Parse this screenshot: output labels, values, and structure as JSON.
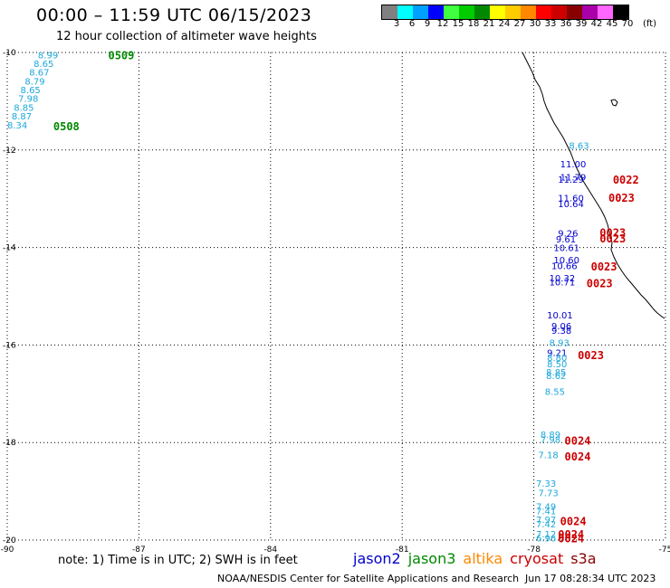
{
  "header": {
    "title": "00:00 – 11:59 UTC 06/15/2023",
    "subtitle": "12 hour collection of altimeter wave heights"
  },
  "colorbar": {
    "unit": "(ft)",
    "labels": [
      "3",
      "6",
      "9",
      "12",
      "15",
      "18",
      "21",
      "24",
      "27",
      "30",
      "33",
      "36",
      "39",
      "42",
      "45",
      "70"
    ],
    "colors": [
      "#808080",
      "#00ffff",
      "#00a0ff",
      "#0000ff",
      "#40ff40",
      "#00cc00",
      "#008800",
      "#ffff00",
      "#ffcc00",
      "#ff8800",
      "#ff0000",
      "#cc0000",
      "#880000",
      "#aa00aa",
      "#ff66ff",
      "#000000"
    ]
  },
  "axes": {
    "lon_ticks": [
      "-90",
      "-87",
      "-84",
      "-81",
      "-78",
      "-75"
    ],
    "lon_values": [
      -90,
      -87,
      -84,
      -81,
      -78,
      -75
    ],
    "lat_ticks": [
      "-10",
      "-12",
      "-14",
      "-16",
      "-18",
      "-20"
    ],
    "lat_values": [
      -10,
      -12,
      -14,
      -16,
      -18,
      -20
    ],
    "lon_range": [
      -90,
      -75
    ],
    "lat_range": [
      -20,
      -10
    ]
  },
  "satellites": [
    {
      "name": "jason2",
      "color": "#0000cc"
    },
    {
      "name": "jason3",
      "color": "#008800"
    },
    {
      "name": "altika",
      "color": "#ff8800"
    },
    {
      "name": "cryosat",
      "color": "#cc0000"
    },
    {
      "name": "s3a",
      "color": "#880000"
    }
  ],
  "footer": {
    "note": "note: 1) Time is in UTC; 2) SWH is in feet",
    "credit": "NOAA/NESDIS Center for Satellite Applications and Research",
    "timestamp": "Jun 17 08:28:34 UTC 2023"
  },
  "observations": [
    {
      "lon": -89.3,
      "lat": -10.05,
      "text": "8.99",
      "color": "#1ca8d8"
    },
    {
      "lon": -89.4,
      "lat": -10.22,
      "text": "8.65",
      "color": "#1ca8d8"
    },
    {
      "lon": -89.5,
      "lat": -10.4,
      "text": "8.67",
      "color": "#1ca8d8"
    },
    {
      "lon": -89.6,
      "lat": -10.58,
      "text": "8.79",
      "color": "#1ca8d8"
    },
    {
      "lon": -89.7,
      "lat": -10.76,
      "text": "8.65",
      "color": "#1ca8d8"
    },
    {
      "lon": -89.75,
      "lat": -10.94,
      "text": "7.98",
      "color": "#1ca8d8"
    },
    {
      "lon": -89.85,
      "lat": -11.12,
      "text": "8.85",
      "color": "#1ca8d8"
    },
    {
      "lon": -89.9,
      "lat": -11.3,
      "text": "8.87",
      "color": "#1ca8d8"
    },
    {
      "lon": -90.0,
      "lat": -11.48,
      "text": "8.34",
      "color": "#1ca8d8"
    },
    {
      "lon": -77.2,
      "lat": -11.9,
      "text": "8.63",
      "color": "#1ca8d8"
    },
    {
      "lon": -77.4,
      "lat": -12.28,
      "text": "11.00",
      "color": "#0000cc"
    },
    {
      "lon": -77.45,
      "lat": -12.6,
      "text": "11.29",
      "color": "#0000cc"
    },
    {
      "lon": -77.4,
      "lat": -12.55,
      "text": "11.79",
      "color": "#0000cc"
    },
    {
      "lon": -77.45,
      "lat": -12.98,
      "text": "11.60",
      "color": "#0000cc"
    },
    {
      "lon": -77.45,
      "lat": -13.1,
      "text": "10.64",
      "color": "#0000cc"
    },
    {
      "lon": -77.45,
      "lat": -13.7,
      "text": "9.26",
      "color": "#0000cc"
    },
    {
      "lon": -77.5,
      "lat": -13.82,
      "text": "9.61",
      "color": "#0000cc"
    },
    {
      "lon": -77.55,
      "lat": -14.0,
      "text": "10.61",
      "color": "#0000cc"
    },
    {
      "lon": -77.55,
      "lat": -14.25,
      "text": "10.60",
      "color": "#0000cc"
    },
    {
      "lon": -77.6,
      "lat": -14.37,
      "text": "10.66",
      "color": "#0000cc"
    },
    {
      "lon": -77.65,
      "lat": -14.62,
      "text": "10.32",
      "color": "#0000cc"
    },
    {
      "lon": -77.65,
      "lat": -14.7,
      "text": "10.71",
      "color": "#0000cc"
    },
    {
      "lon": -77.7,
      "lat": -15.38,
      "text": "10.01",
      "color": "#0000cc"
    },
    {
      "lon": -77.6,
      "lat": -15.6,
      "text": "9.06",
      "color": "#0000cc"
    },
    {
      "lon": -77.6,
      "lat": -15.7,
      "text": "9.38",
      "color": "#0000cc"
    },
    {
      "lon": -77.65,
      "lat": -15.95,
      "text": "8.93",
      "color": "#1ca8d8"
    },
    {
      "lon": -77.7,
      "lat": -16.15,
      "text": "9.21",
      "color": "#0000cc"
    },
    {
      "lon": -77.7,
      "lat": -16.25,
      "text": "8.80",
      "color": "#1ca8d8"
    },
    {
      "lon": -77.7,
      "lat": -16.38,
      "text": "8.50",
      "color": "#1ca8d8"
    },
    {
      "lon": -77.72,
      "lat": -16.55,
      "text": "8.85",
      "color": "#1ca8d8"
    },
    {
      "lon": -77.72,
      "lat": -16.62,
      "text": "8.62",
      "color": "#1ca8d8"
    },
    {
      "lon": -77.75,
      "lat": -16.95,
      "text": "8.55",
      "color": "#1ca8d8"
    },
    {
      "lon": -77.85,
      "lat": -17.83,
      "text": "8.89",
      "color": "#1ca8d8"
    },
    {
      "lon": -77.85,
      "lat": -17.93,
      "text": "7.98",
      "color": "#1ca8d8"
    },
    {
      "lon": -77.9,
      "lat": -18.25,
      "text": "7.18",
      "color": "#1ca8d8"
    },
    {
      "lon": -77.95,
      "lat": -18.83,
      "text": "7.33",
      "color": "#1ca8d8"
    },
    {
      "lon": -77.9,
      "lat": -19.03,
      "text": "7.73",
      "color": "#1ca8d8"
    },
    {
      "lon": -77.95,
      "lat": -19.3,
      "text": "7.49",
      "color": "#1ca8d8"
    },
    {
      "lon": -77.95,
      "lat": -19.4,
      "text": "7.41",
      "color": "#1ca8d8"
    },
    {
      "lon": -77.95,
      "lat": -19.57,
      "text": "7.97",
      "color": "#1ca8d8"
    },
    {
      "lon": -77.95,
      "lat": -19.67,
      "text": "7.42",
      "color": "#1ca8d8"
    },
    {
      "lon": -77.95,
      "lat": -19.87,
      "text": "7.12",
      "color": "#1ca8d8"
    },
    {
      "lon": -77.95,
      "lat": -19.95,
      "text": "6.96",
      "color": "#1ca8d8"
    }
  ],
  "time_labels": [
    {
      "lon": -87.7,
      "lat": -10.05,
      "text": "0509",
      "color": "#008800"
    },
    {
      "lon": -88.95,
      "lat": -11.5,
      "text": "0508",
      "color": "#008800"
    },
    {
      "lon": -76.2,
      "lat": -12.6,
      "text": "0022",
      "color": "#cc0000"
    },
    {
      "lon": -76.3,
      "lat": -12.97,
      "text": "0023",
      "color": "#cc0000"
    },
    {
      "lon": -76.5,
      "lat": -13.68,
      "text": "0023",
      "color": "#cc0000"
    },
    {
      "lon": -76.5,
      "lat": -13.8,
      "text": "0023",
      "color": "#cc0000"
    },
    {
      "lon": -76.7,
      "lat": -14.38,
      "text": "0023",
      "color": "#cc0000"
    },
    {
      "lon": -76.8,
      "lat": -14.72,
      "text": "0023",
      "color": "#cc0000"
    },
    {
      "lon": -77.0,
      "lat": -16.2,
      "text": "0023",
      "color": "#cc0000"
    },
    {
      "lon": -77.3,
      "lat": -17.95,
      "text": "0024",
      "color": "#cc0000"
    },
    {
      "lon": -77.3,
      "lat": -18.27,
      "text": "0024",
      "color": "#cc0000"
    },
    {
      "lon": -77.4,
      "lat": -19.6,
      "text": "0024",
      "color": "#cc0000"
    },
    {
      "lon": -77.45,
      "lat": -19.87,
      "text": "0024",
      "color": "#cc0000"
    },
    {
      "lon": -77.45,
      "lat": -19.95,
      "text": "0024",
      "color": "#cc0000"
    }
  ]
}
